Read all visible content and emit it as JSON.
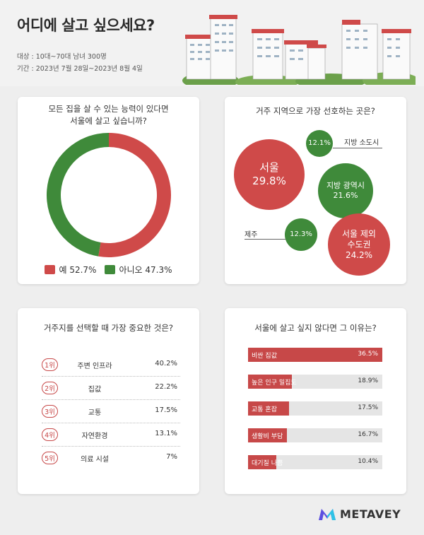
{
  "header": {
    "title": "어디에 살고 싶으세요?",
    "target": "대상 : 10대~70대 남녀 300명",
    "period": "기간 : 2023년 7월 28일~2023년 8월 4일"
  },
  "colors": {
    "red": "#cf4a49",
    "green": "#3f8a3a",
    "bar_red": "#c74848"
  },
  "q1": {
    "title_line1": "모든 집을 살 수 있는 능력이 있다면",
    "title_line2": "서울에 살고 싶습니까?",
    "chart_data": {
      "type": "pie",
      "categories": [
        "예",
        "아니오"
      ],
      "values": [
        52.7,
        47.3
      ],
      "legend": [
        {
          "label": "예 52.7%",
          "color": "#cf4a49"
        },
        {
          "label": "아니오 47.3%",
          "color": "#3f8a3a"
        }
      ]
    }
  },
  "q2": {
    "title": "거주 지역으로 가장 선호하는 곳은?",
    "bubbles": [
      {
        "name": "서울",
        "value": "29.8%"
      },
      {
        "name": "",
        "value": "12.1%",
        "ext_label": "지방 소도시"
      },
      {
        "name": "지방 광역시",
        "value": "21.6%"
      },
      {
        "name": "",
        "value": "12.3%",
        "ext_label": "제주"
      },
      {
        "name": "서울 제외 수도권",
        "name_line1": "서울 제외",
        "name_line2": "수도권",
        "value": "24.2%"
      }
    ]
  },
  "q3": {
    "title": "거주지를 선택할 때 가장 중요한 것은?",
    "rows": [
      {
        "rank": "1위",
        "name": "주변 인프라",
        "value": "40.2%"
      },
      {
        "rank": "2위",
        "name": "집값",
        "value": "22.2%"
      },
      {
        "rank": "3위",
        "name": "교통",
        "value": "17.5%"
      },
      {
        "rank": "4위",
        "name": "자연환경",
        "value": "13.1%"
      },
      {
        "rank": "5위",
        "name": "의료 시설",
        "value": "7%"
      }
    ]
  },
  "q4": {
    "title": "서울에 살고 싶지 않다면 그 이유는?",
    "chart_data": {
      "type": "bar",
      "categories": [
        "비싼 집값",
        "높은 인구 밀집도",
        "교통 혼잡",
        "생활비 부담",
        "대기질 나쁨"
      ],
      "values": [
        36.5,
        18.9,
        17.5,
        16.7,
        10.4
      ],
      "labels": [
        "36.5%",
        "18.9%",
        "17.5%",
        "16.7%",
        "10.4%"
      ]
    }
  },
  "footer": {
    "brand": "METAVEY"
  }
}
